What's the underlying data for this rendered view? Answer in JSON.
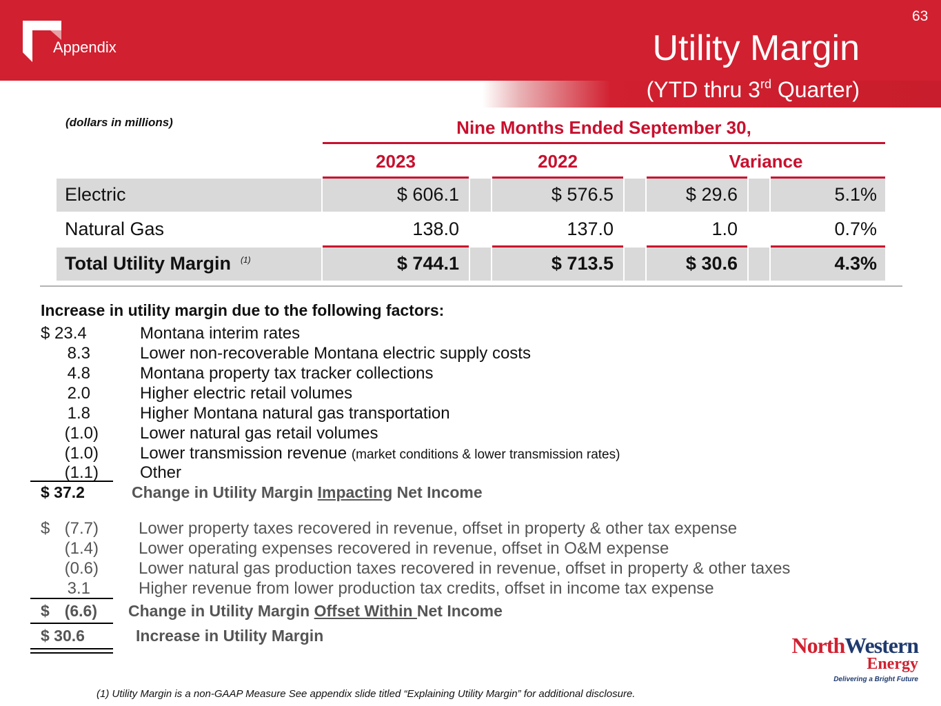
{
  "header": {
    "section": "Appendix",
    "page_number": "63",
    "title": "Utility Margin",
    "subtitle_pre": "(YTD thru 3",
    "subtitle_sup": "rd",
    "subtitle_post": " Quarter)"
  },
  "table": {
    "units_note": "(dollars in millions)",
    "period_header": "Nine Months Ended September 30,",
    "col_headers": [
      "2023",
      "2022",
      "Variance"
    ],
    "rows": [
      {
        "label": "Electric",
        "footnote": "",
        "v2023": "$ 606.1",
        "v2022": "$ 576.5",
        "var_amt": "$ 29.6",
        "var_pct": "5.1%"
      },
      {
        "label": "Natural Gas",
        "footnote": "",
        "v2023": "138.0",
        "v2022": "137.0",
        "var_amt": "1.0",
        "var_pct": "0.7%"
      },
      {
        "label": "Total Utility Margin",
        "footnote": "(1)",
        "v2023": "$ 744.1",
        "v2022": "$ 713.5",
        "var_amt": "$ 30.6",
        "var_pct": "4.3%"
      }
    ]
  },
  "factors": {
    "heading": "Increase in utility margin due to the following factors:",
    "impacting": [
      {
        "amount": "$ 23.4",
        "desc": "Montana interim rates",
        "note": ""
      },
      {
        "amount": "8.3",
        "desc": "Lower non-recoverable Montana electric supply costs",
        "note": ""
      },
      {
        "amount": "4.8",
        "desc": "Montana property tax tracker collections",
        "note": ""
      },
      {
        "amount": "2.0",
        "desc": "Higher electric retail volumes",
        "note": ""
      },
      {
        "amount": "1.8",
        "desc": "Higher Montana natural gas transportation",
        "note": ""
      },
      {
        "amount": "(1.0)",
        "desc": "Lower natural gas retail volumes",
        "note": ""
      },
      {
        "amount": "(1.0)",
        "desc": "Lower transmission revenue",
        "note": "(market conditions & lower transmission rates)"
      },
      {
        "amount": "(1.1)",
        "desc": "Other",
        "note": ""
      }
    ],
    "impacting_total": {
      "amount": "$ 37.2",
      "pre": "Change in Utility Margin ",
      "emph": "Impacting",
      "post": " Net Income"
    },
    "offset": [
      {
        "amount_prefix": "$",
        "amount": "(7.7)",
        "desc": "Lower property taxes recovered in revenue, offset in property & other tax expense"
      },
      {
        "amount_prefix": "",
        "amount": "(1.4)",
        "desc": "Lower operating expenses recovered in revenue, offset in O&M expense"
      },
      {
        "amount_prefix": "",
        "amount": "(0.6)",
        "desc": "Lower natural gas production taxes recovered in revenue, offset in property & other taxes"
      },
      {
        "amount_prefix": "",
        "amount": "3.1",
        "desc": "Higher revenue from lower production tax credits, offset in income tax expense"
      }
    ],
    "offset_total": {
      "amount_prefix": "$",
      "amount": "(6.6)",
      "pre": "Change in Utility Margin ",
      "emph": "Offset Within ",
      "post": "Net Income"
    },
    "grand_total": {
      "amount": "$ 30.6",
      "label": "Increase in Utility Margin"
    }
  },
  "footnote": "(1) Utility Margin is a non-GAAP Measure  See appendix slide titled “Explaining Utility Margin” for additional disclosure.",
  "brand": {
    "name_north": "North",
    "name_western": "Western",
    "name_energy": "Energy",
    "tagline": "Delivering a Bright Future",
    "accent_color": "#d12030",
    "navy_color": "#1f3a6e"
  }
}
